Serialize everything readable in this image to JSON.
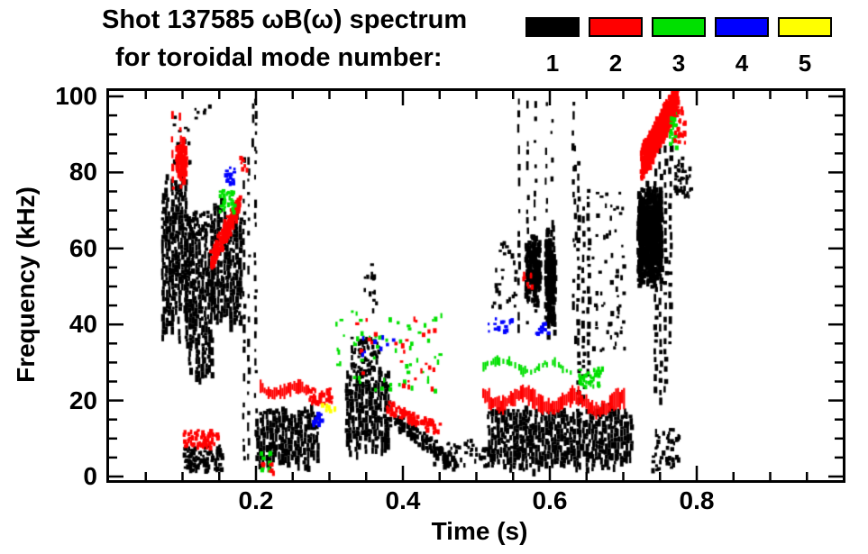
{
  "header": {
    "title_line1": "Shot 137585 ωB(ω) spectrum",
    "title_line2": "for toroidal mode number:",
    "legend": {
      "items": [
        {
          "label": "1",
          "color": "#000000"
        },
        {
          "label": "2",
          "color": "#ff0000"
        },
        {
          "label": "3",
          "color": "#00e000"
        },
        {
          "label": "4",
          "color": "#0000ff"
        },
        {
          "label": "5",
          "color": "#ffff00"
        }
      ]
    }
  },
  "axes": {
    "xlabel": "Time (s)",
    "ylabel": "Frequency (kHz)"
  },
  "chart_data": {
    "type": "scatter",
    "title": "Shot 137585 ωB(ω) spectrum for toroidal mode number: 1-5",
    "xlabel": "Time (s)",
    "ylabel": "Frequency (kHz)",
    "xlim": [
      0.0,
      1.0
    ],
    "ylim": [
      0,
      100
    ],
    "grid": false,
    "legend_position": "top-right",
    "xticks": {
      "major": [
        0.2,
        0.4,
        0.6,
        0.8
      ],
      "labels": [
        "0.2",
        "0.4",
        "0.6",
        "0.8"
      ],
      "minor_step": 0.05
    },
    "yticks": {
      "major": [
        0,
        20,
        40,
        60,
        80,
        100
      ],
      "labels": [
        "0",
        "20",
        "40",
        "60",
        "80",
        "100"
      ],
      "minor_step": 5
    },
    "modes": [
      {
        "n": 1,
        "color": "#000000"
      },
      {
        "n": 2,
        "color": "#ff0000"
      },
      {
        "n": 3,
        "color": "#00e000"
      },
      {
        "n": 4,
        "color": "#0000ff"
      },
      {
        "n": 5,
        "color": "#ffff00"
      }
    ],
    "clusters": [
      {
        "mode": 1,
        "style": "columns",
        "t": [
          0.072,
          0.106
        ],
        "f": [
          35,
          80
        ],
        "density": "dense"
      },
      {
        "mode": 1,
        "style": "columns",
        "t": [
          0.104,
          0.14
        ],
        "f": [
          25,
          64
        ],
        "density": "dense"
      },
      {
        "mode": 1,
        "style": "columns",
        "t": [
          0.138,
          0.178
        ],
        "f": [
          40,
          72
        ],
        "density": "dense"
      },
      {
        "mode": 1,
        "style": "streaks",
        "t": [
          0.178,
          0.2
        ],
        "f": [
          5,
          88
        ],
        "density": "med"
      },
      {
        "mode": 1,
        "style": "streaks",
        "t": [
          0.193,
          0.2
        ],
        "f": [
          85,
          100
        ],
        "density": "sparse"
      },
      {
        "mode": 1,
        "style": "scatter",
        "t": [
          0.08,
          0.135
        ],
        "f": [
          80,
          98
        ],
        "n": 22
      },
      {
        "mode": 2,
        "style": "streaks",
        "t": [
          0.082,
          0.098
        ],
        "f": [
          74,
          98
        ],
        "density": "med"
      },
      {
        "mode": 2,
        "style": "blobfill",
        "t": [
          0.09,
          0.103
        ],
        "f": [
          78,
          90
        ],
        "n": 70
      },
      {
        "mode": 2,
        "style": "diag",
        "t": [
          0.138,
          0.175
        ],
        "f": [
          58,
          72
        ],
        "dir": "asc",
        "n": 200,
        "spread": 2.5
      },
      {
        "mode": 2,
        "style": "scatter",
        "t": [
          0.1,
          0.148
        ],
        "f": [
          8,
          12.5
        ],
        "n": 70
      },
      {
        "mode": 1,
        "style": "scatter",
        "t": [
          0.1,
          0.152
        ],
        "f": [
          2,
          8.5
        ],
        "n": 110
      },
      {
        "mode": 1,
        "style": "scatter",
        "t": [
          0.103,
          0.133
        ],
        "f": [
          63,
          70
        ],
        "n": 50
      },
      {
        "mode": 3,
        "style": "scatter",
        "t": [
          0.149,
          0.17
        ],
        "f": [
          70,
          76
        ],
        "n": 32
      },
      {
        "mode": 4,
        "style": "scatter",
        "t": [
          0.156,
          0.17
        ],
        "f": [
          77,
          82
        ],
        "n": 18
      },
      {
        "mode": 3,
        "style": "scatter",
        "t": [
          0.205,
          0.218
        ],
        "f": [
          2,
          7
        ],
        "n": 10
      },
      {
        "mode": 2,
        "style": "scatter",
        "t": [
          0.205,
          0.222
        ],
        "f": [
          1.5,
          4.5
        ],
        "n": 8
      },
      {
        "mode": 2,
        "style": "scatter",
        "t": [
          0.176,
          0.186
        ],
        "f": [
          81,
          85
        ],
        "n": 7
      },
      {
        "mode": 2,
        "style": "band",
        "t": [
          0.205,
          0.272
        ],
        "f": [
          20,
          25.5
        ],
        "density": "dense"
      },
      {
        "mode": 2,
        "style": "scatter",
        "t": [
          0.27,
          0.302
        ],
        "f": [
          19.5,
          23.5
        ],
        "n": 45
      },
      {
        "mode": 1,
        "style": "columns",
        "t": [
          0.2,
          0.284
        ],
        "f": [
          2.5,
          18
        ],
        "density": "dense"
      },
      {
        "mode": 4,
        "style": "scatter",
        "t": [
          0.276,
          0.289
        ],
        "f": [
          14,
          17.5
        ],
        "n": 20
      },
      {
        "mode": 5,
        "style": "scatter",
        "t": [
          0.288,
          0.306
        ],
        "f": [
          17.5,
          19.5
        ],
        "n": 8
      },
      {
        "mode": 1,
        "style": "columns",
        "t": [
          0.322,
          0.378
        ],
        "f": [
          6,
          28
        ],
        "density": "dense"
      },
      {
        "mode": 1,
        "style": "scatter",
        "t": [
          0.328,
          0.368
        ],
        "f": [
          28,
          37
        ],
        "n": 70
      },
      {
        "mode": 1,
        "style": "scatter",
        "t": [
          0.345,
          0.363
        ],
        "f": [
          44,
          57
        ],
        "n": 16
      },
      {
        "mode": 3,
        "style": "scatter",
        "t": [
          0.305,
          0.452
        ],
        "f": [
          23,
          44
        ],
        "n": 60
      },
      {
        "mode": 2,
        "style": "scatter",
        "t": [
          0.335,
          0.442
        ],
        "f": [
          23,
          43
        ],
        "n": 26
      },
      {
        "mode": 4,
        "style": "scatter",
        "t": [
          0.34,
          0.405
        ],
        "f": [
          32,
          39
        ],
        "n": 8
      },
      {
        "mode": 2,
        "style": "diag",
        "t": [
          0.375,
          0.447
        ],
        "f": [
          13,
          19
        ],
        "dir": "desc",
        "n": 80,
        "spread": 1.5
      },
      {
        "mode": 1,
        "style": "diag",
        "t": [
          0.38,
          0.47
        ],
        "f": [
          4,
          16
        ],
        "dir": "desc",
        "n": 100,
        "spread": 2
      },
      {
        "mode": 1,
        "style": "scatter",
        "t": [
          0.44,
          0.52
        ],
        "f": [
          3,
          10
        ],
        "n": 55
      },
      {
        "mode": 1,
        "style": "columns",
        "t": [
          0.515,
          0.71
        ],
        "f": [
          2,
          18
        ],
        "density": "dense"
      },
      {
        "mode": 2,
        "style": "band",
        "t": [
          0.508,
          0.7
        ],
        "f": [
          16,
          23.5
        ],
        "density": "dense"
      },
      {
        "mode": 3,
        "style": "band",
        "t": [
          0.503,
          0.632
        ],
        "f": [
          26,
          32
        ],
        "density": "med"
      },
      {
        "mode": 3,
        "style": "scatter",
        "t": [
          0.638,
          0.672
        ],
        "f": [
          24,
          29
        ],
        "n": 40
      },
      {
        "mode": 1,
        "style": "streaks",
        "t": [
          0.553,
          0.583
        ],
        "f": [
          40,
          100
        ],
        "density": "med"
      },
      {
        "mode": 1,
        "style": "blobfill",
        "t": [
          0.565,
          0.585
        ],
        "f": [
          45,
          66
        ],
        "n": 150
      },
      {
        "mode": 1,
        "style": "streaks",
        "t": [
          0.592,
          0.604
        ],
        "f": [
          65,
          100
        ],
        "density": "sparse"
      },
      {
        "mode": 1,
        "style": "blobfill",
        "t": [
          0.592,
          0.605
        ],
        "f": [
          37,
          67
        ],
        "n": 180
      },
      {
        "mode": 1,
        "style": "streaks",
        "t": [
          0.628,
          0.636
        ],
        "f": [
          35,
          100
        ],
        "density": "sparse"
      },
      {
        "mode": 1,
        "style": "columns",
        "t": [
          0.637,
          0.656
        ],
        "f": [
          8,
          85
        ],
        "density": "med"
      },
      {
        "mode": 1,
        "style": "scatter",
        "t": [
          0.52,
          0.552
        ],
        "f": [
          45,
          65
        ],
        "n": 28
      },
      {
        "mode": 4,
        "style": "scatter",
        "t": [
          0.514,
          0.548
        ],
        "f": [
          38.5,
          42
        ],
        "n": 16
      },
      {
        "mode": 4,
        "style": "scatter",
        "t": [
          0.578,
          0.596
        ],
        "f": [
          38,
          41
        ],
        "n": 12
      },
      {
        "mode": 2,
        "style": "scatter",
        "t": [
          0.562,
          0.578
        ],
        "f": [
          50,
          54
        ],
        "n": 8
      },
      {
        "mode": 1,
        "style": "scatter",
        "t": [
          0.656,
          0.7
        ],
        "f": [
          33,
          75
        ],
        "n": 60
      },
      {
        "mode": 2,
        "style": "diag",
        "t": [
          0.724,
          0.77
        ],
        "f": [
          83,
          100
        ],
        "dir": "asc",
        "n": 600,
        "spread": 4
      },
      {
        "mode": 3,
        "style": "scatter",
        "t": [
          0.762,
          0.772
        ],
        "f": [
          87,
          96
        ],
        "n": 25
      },
      {
        "mode": 1,
        "style": "blobfill",
        "t": [
          0.718,
          0.75
        ],
        "f": [
          50,
          78
        ],
        "n": 600
      },
      {
        "mode": 1,
        "style": "columns",
        "t": [
          0.742,
          0.768
        ],
        "f": [
          15,
          88
        ],
        "density": "med"
      },
      {
        "mode": 1,
        "style": "scatter",
        "t": [
          0.738,
          0.775
        ],
        "f": [
          2,
          13
        ],
        "n": 45
      },
      {
        "mode": 1,
        "style": "scatter",
        "t": [
          0.768,
          0.79
        ],
        "f": [
          74,
          85
        ],
        "n": 40
      },
      {
        "mode": 2,
        "style": "scatter",
        "t": [
          0.768,
          0.783
        ],
        "f": [
          86,
          100
        ],
        "n": 25
      }
    ]
  }
}
